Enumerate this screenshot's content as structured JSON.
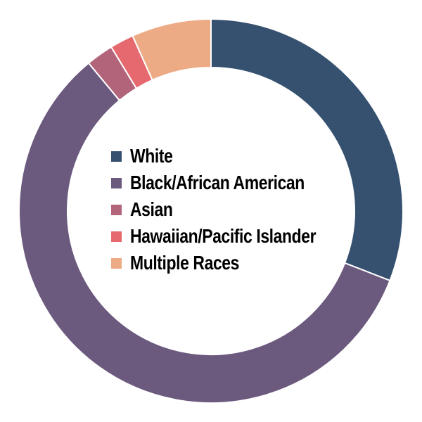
{
  "background_color": "#ffffff",
  "text_color": "#000000",
  "chart_data": {
    "type": "pie",
    "variant": "donut",
    "title": "",
    "labels": [
      "White",
      "Black/African American",
      "Asian",
      "Hawaiian/Pacific Islander",
      "Multiple Races"
    ],
    "values": [
      30.9,
      58.1,
      2.3,
      2.0,
      6.7
    ],
    "colors": [
      "#36516F",
      "#6C5A7E",
      "#B2647B",
      "#E5696E",
      "#EDAB85"
    ],
    "start_angle_deg": 0,
    "direction": "clockwise",
    "separator_color": "#FFFFFF",
    "legend_position": "center-inside-donut",
    "legend_entries": [
      {
        "label": "White",
        "color": "#36516F"
      },
      {
        "label": "Black/African American",
        "color": "#6C5A7E"
      },
      {
        "label": "Asian",
        "color": "#B2647B"
      },
      {
        "label": "Hawaiian/Pacific Islander",
        "color": "#E5696E"
      },
      {
        "label": "Multiple Races",
        "color": "#EDAB85"
      }
    ]
  }
}
